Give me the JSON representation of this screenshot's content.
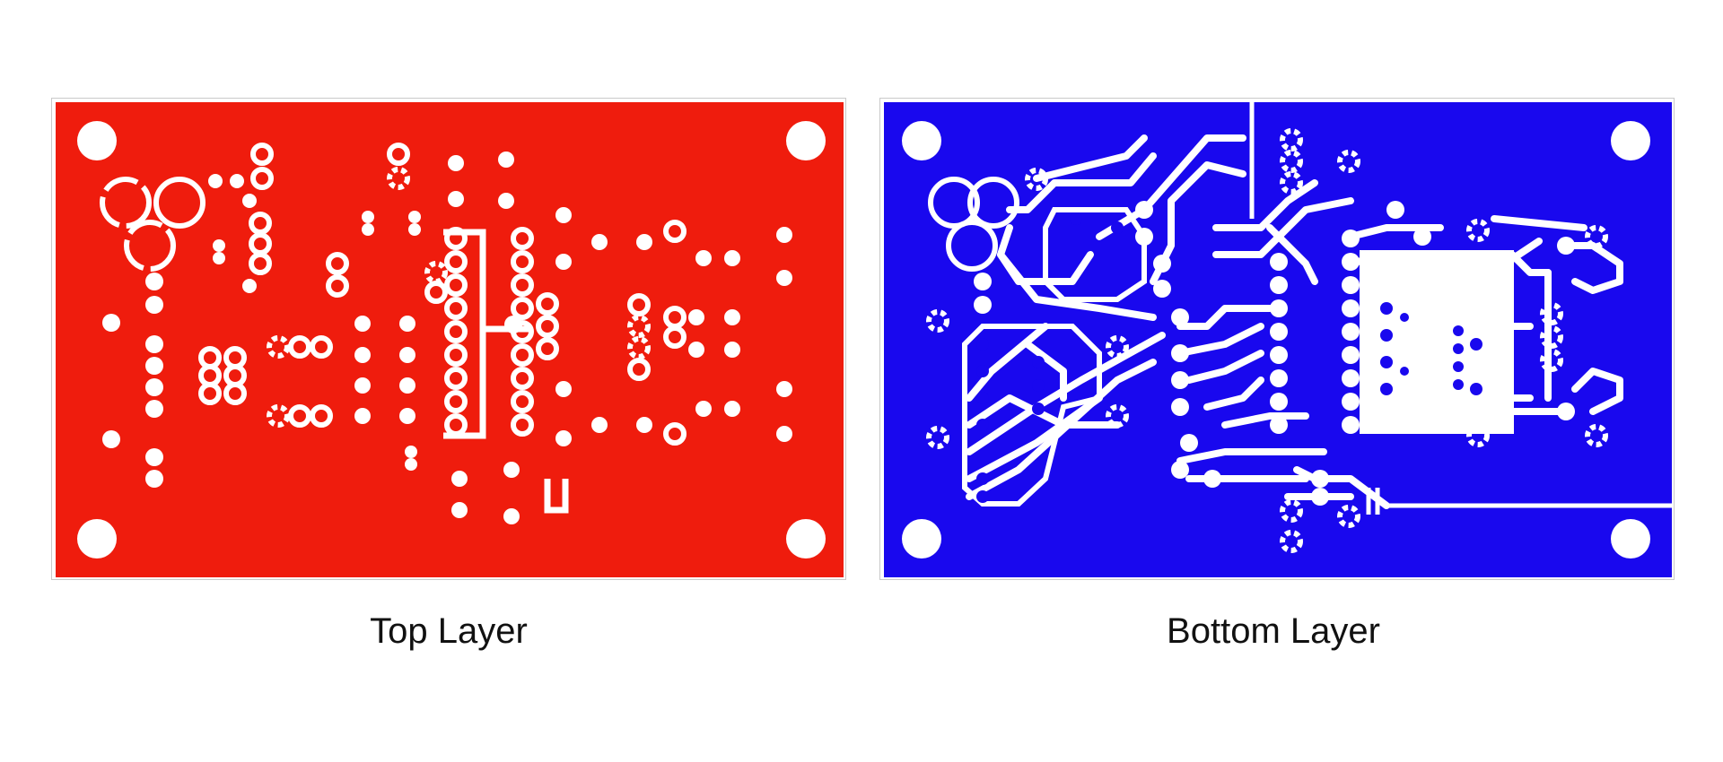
{
  "colors": {
    "top_copper": "#ef1c0d",
    "bottom_copper": "#1908ee",
    "clearance": "#ffffff",
    "board_outline": "#c9c9c9"
  },
  "layers": [
    {
      "id": "top",
      "caption": "Top Layer"
    },
    {
      "id": "bottom",
      "caption": "Bottom Layer"
    }
  ]
}
